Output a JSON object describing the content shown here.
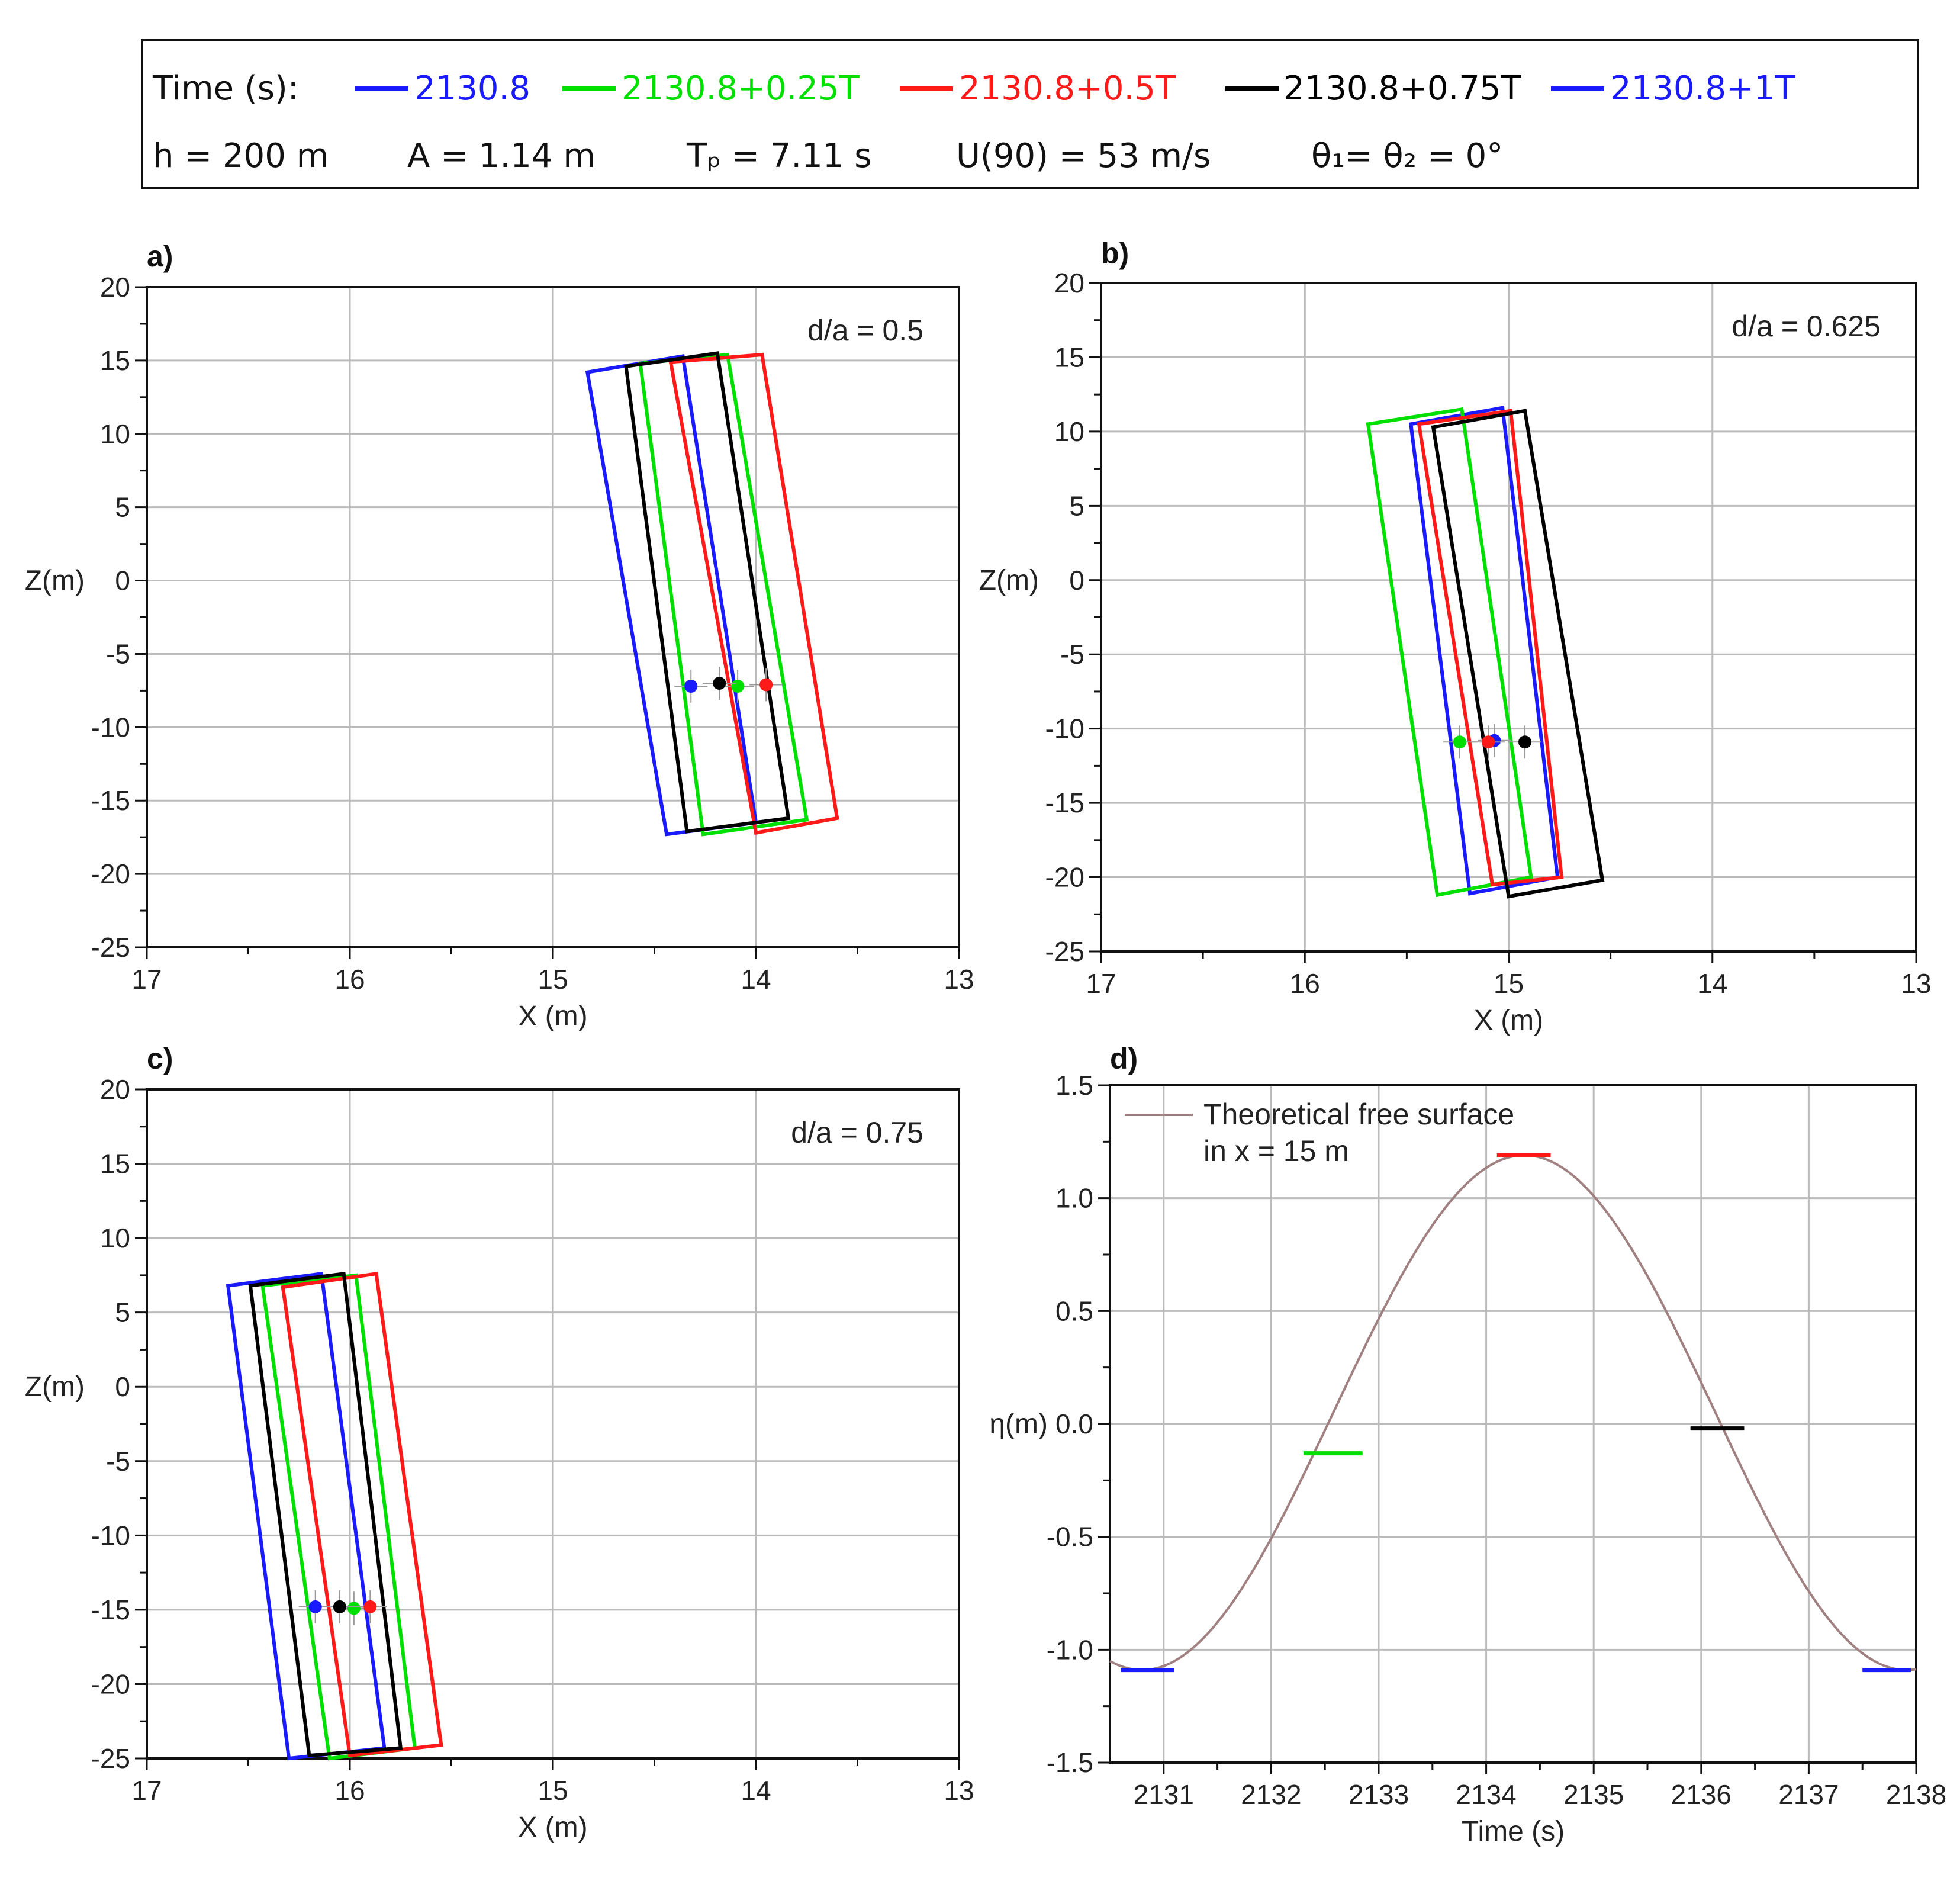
{
  "legend": {
    "time_label": "Time (s):",
    "entries": [
      {
        "label": "2130.8",
        "color": "#1a1aff"
      },
      {
        "label": "2130.8+0.25T",
        "color": "#00e000"
      },
      {
        "label": "2130.8+0.5T",
        "color": "#ff1a1a"
      },
      {
        "label": "2130.8+0.75T",
        "color": "#000000"
      },
      {
        "label": "2130.8+1T",
        "color": "#1a1aff"
      }
    ],
    "params": [
      "h = 200 m",
      "A = 1.14 m",
      "Tₚ = 7.11 s",
      "U(90) = 53 m/s",
      "θ₁= θ₂ = 0°"
    ]
  },
  "chart_data": [
    {
      "panel": "a)",
      "type": "line",
      "subtitle": "d/a = 0.5",
      "xlabel": "X (m)",
      "ylabel": "Z(m)",
      "xlim": [
        17,
        13
      ],
      "ylim": [
        -25,
        20
      ],
      "xticks": [
        17,
        16,
        15,
        14,
        13
      ],
      "yticks": [
        20,
        15,
        10,
        5,
        0,
        -5,
        -10,
        -15,
        -20,
        -25
      ],
      "series": [
        {
          "name": "2130.8",
          "color": "#1a1aff",
          "outline": [
            [
              14.83,
              14.2
            ],
            [
              14.36,
              15.3
            ],
            [
              14.44,
              -17.3
            ],
            [
              14.0,
              -16.5
            ]
          ],
          "centroid": [
            14.32,
            -7.2
          ]
        },
        {
          "name": "2130.8+0.25T",
          "color": "#00e000",
          "outline": [
            [
              14.57,
              14.8
            ],
            [
              14.14,
              15.4
            ],
            [
              14.26,
              -17.3
            ],
            [
              13.75,
              -16.3
            ]
          ],
          "centroid": [
            14.09,
            -7.2
          ]
        },
        {
          "name": "2130.8+0.5T",
          "color": "#ff1a1a",
          "outline": [
            [
              14.42,
              14.9
            ],
            [
              13.97,
              15.4
            ],
            [
              14.0,
              -17.2
            ],
            [
              13.6,
              -16.2
            ]
          ],
          "centroid": [
            13.95,
            -7.1
          ]
        },
        {
          "name": "2130.8+0.75T",
          "color": "#000000",
          "outline": [
            [
              14.64,
              14.6
            ],
            [
              14.19,
              15.5
            ],
            [
              14.34,
              -17.1
            ],
            [
              13.84,
              -16.2
            ]
          ],
          "centroid": [
            14.18,
            -7.0
          ]
        }
      ]
    },
    {
      "panel": "b)",
      "type": "line",
      "subtitle": "d/a = 0.625",
      "xlabel": "X (m)",
      "ylabel": "Z(m)",
      "xlim": [
        17,
        13
      ],
      "ylim": [
        -25,
        20
      ],
      "xticks": [
        17,
        16,
        15,
        14,
        13
      ],
      "yticks": [
        20,
        15,
        10,
        5,
        0,
        -5,
        -10,
        -15,
        -20,
        -25
      ],
      "series": [
        {
          "name": "2130.8",
          "color": "#1a1aff",
          "outline": [
            [
              15.48,
              10.5
            ],
            [
              15.03,
              11.6
            ],
            [
              15.19,
              -21.1
            ],
            [
              14.76,
              -20.0
            ]
          ],
          "centroid": [
            15.07,
            -10.8
          ]
        },
        {
          "name": "2130.8+0.25T",
          "color": "#00e000",
          "outline": [
            [
              15.69,
              10.5
            ],
            [
              15.23,
              11.5
            ],
            [
              15.35,
              -21.2
            ],
            [
              14.89,
              -20.0
            ]
          ],
          "centroid": [
            15.24,
            -10.9
          ]
        },
        {
          "name": "2130.8+0.5T",
          "color": "#ff1a1a",
          "outline": [
            [
              15.44,
              10.5
            ],
            [
              14.99,
              11.4
            ],
            [
              15.08,
              -20.5
            ],
            [
              14.74,
              -20.0
            ]
          ],
          "centroid": [
            15.1,
            -10.9
          ]
        },
        {
          "name": "2130.8+0.75T",
          "color": "#000000",
          "outline": [
            [
              15.37,
              10.3
            ],
            [
              14.92,
              11.4
            ],
            [
              15.0,
              -21.3
            ],
            [
              14.54,
              -20.2
            ]
          ],
          "centroid": [
            14.92,
            -10.9
          ]
        }
      ]
    },
    {
      "panel": "c)",
      "type": "line",
      "subtitle": "d/a = 0.75",
      "xlabel": "X (m)",
      "ylabel": "Z(m)",
      "xlim": [
        17,
        13
      ],
      "ylim": [
        -25,
        20
      ],
      "xticks": [
        17,
        16,
        15,
        14,
        13
      ],
      "yticks": [
        20,
        15,
        10,
        5,
        0,
        -5,
        -10,
        -15,
        -20,
        -25
      ],
      "series": [
        {
          "name": "2130.8",
          "color": "#1a1aff",
          "outline": [
            [
              16.6,
              6.8
            ],
            [
              16.14,
              7.6
            ],
            [
              16.3,
              -25
            ],
            [
              15.83,
              -24.3
            ]
          ],
          "centroid": [
            16.17,
            -14.8
          ]
        },
        {
          "name": "2130.8+0.25T",
          "color": "#00e000",
          "outline": [
            [
              16.43,
              6.8
            ],
            [
              15.97,
              7.5
            ],
            [
              16.1,
              -25
            ],
            [
              15.68,
              -24.3
            ]
          ],
          "centroid": [
            15.98,
            -14.9
          ]
        },
        {
          "name": "2130.8+0.5T",
          "color": "#ff1a1a",
          "outline": [
            [
              16.33,
              6.7
            ],
            [
              15.87,
              7.6
            ],
            [
              16.0,
              -24.8
            ],
            [
              15.55,
              -24.1
            ]
          ],
          "centroid": [
            15.9,
            -14.8
          ]
        },
        {
          "name": "2130.8+0.75T",
          "color": "#000000",
          "outline": [
            [
              16.49,
              6.8
            ],
            [
              16.03,
              7.6
            ],
            [
              16.2,
              -24.8
            ],
            [
              15.75,
              -24.3
            ]
          ],
          "centroid": [
            16.05,
            -14.8
          ]
        }
      ]
    },
    {
      "panel": "d)",
      "type": "line",
      "xlabel": "Time (s)",
      "ylabel": "η(m)",
      "xlim": [
        2130.5,
        2138
      ],
      "ylim": [
        -1.5,
        1.5
      ],
      "xticks": [
        2131,
        2132,
        2133,
        2134,
        2135,
        2136,
        2137,
        2138
      ],
      "yticks": [
        1.5,
        1.0,
        0.5,
        0.0,
        -0.5,
        -1.0,
        -1.5
      ],
      "legend_entry": [
        "Theoretical free surface",
        "in x = 15 m"
      ],
      "theory_curve": {
        "color": "#a08080",
        "t0": 2130.8,
        "period": 7.11,
        "amplitude": 1.14,
        "trough_level": -1.09,
        "crest_level": 1.19
      },
      "markers": [
        {
          "name": "2130.8",
          "color": "#1a1aff",
          "t": [
            2130.6,
            2131.1
          ],
          "eta": -1.09
        },
        {
          "name": "2130.8+0.25T",
          "color": "#00e000",
          "t": [
            2132.3,
            2132.85
          ],
          "eta": -0.13
        },
        {
          "name": "2130.8+0.5T",
          "color": "#ff1a1a",
          "t": [
            2134.1,
            2134.6
          ],
          "eta": 1.19
        },
        {
          "name": "2130.8+0.75T",
          "color": "#000000",
          "t": [
            2135.9,
            2136.4
          ],
          "eta": -0.02
        },
        {
          "name": "2130.8+1T",
          "color": "#1a1aff",
          "t": [
            2137.5,
            2137.95
          ],
          "eta": -1.09
        }
      ]
    }
  ]
}
